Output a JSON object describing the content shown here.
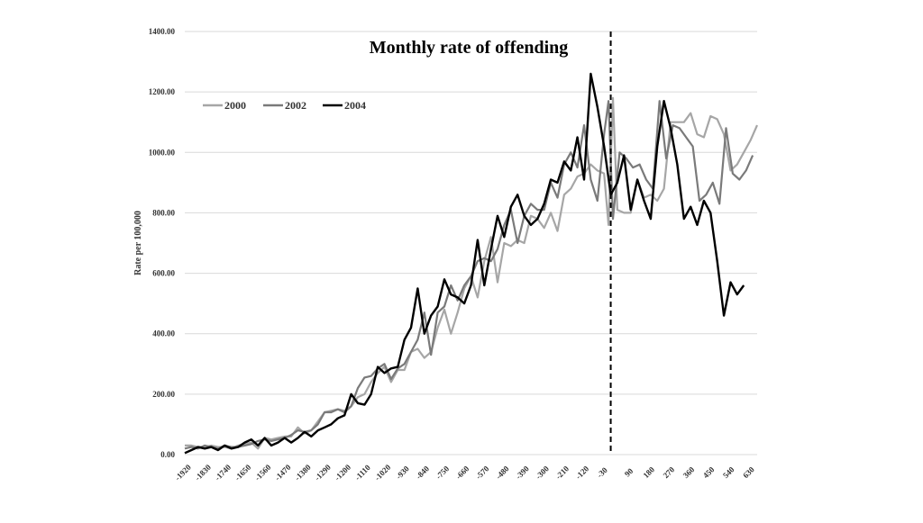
{
  "chart_data": {
    "type": "line",
    "title": "Monthly rate of offending",
    "xlabel": "",
    "ylabel": "Rate per 100,000",
    "ylim": [
      0,
      1400
    ],
    "xlim": [
      -1920,
      660
    ],
    "y_ticks": [
      "0.00",
      "200.00",
      "400.00",
      "600.00",
      "800.00",
      "1000.00",
      "1200.00",
      "1400.00"
    ],
    "x_ticks": [
      "-1920",
      "-1830",
      "-1740",
      "-1650",
      "-1560",
      "-1470",
      "-1380",
      "-1290",
      "-1200",
      "-1110",
      "-1020",
      "-930",
      "-840",
      "-750",
      "-660",
      "-570",
      "-480",
      "-390",
      "-300",
      "-210",
      "-120",
      "-30",
      "90",
      "180",
      "270",
      "360",
      "450",
      "540",
      "630"
    ],
    "grid": "horizontal",
    "legend_position": "top-left",
    "reference_line": {
      "x": 0,
      "style": "dashed"
    },
    "colors": {
      "2000": "#a6a6a6",
      "2002": "#7a7a7a",
      "2004": "#000000"
    },
    "series": [
      {
        "name": "2000",
        "points": [
          [
            -1920,
            30
          ],
          [
            -1890,
            30
          ],
          [
            -1860,
            25
          ],
          [
            -1830,
            25
          ],
          [
            -1800,
            30
          ],
          [
            -1770,
            25
          ],
          [
            -1740,
            25
          ],
          [
            -1710,
            20
          ],
          [
            -1680,
            30
          ],
          [
            -1650,
            35
          ],
          [
            -1620,
            40
          ],
          [
            -1590,
            20
          ],
          [
            -1560,
            55
          ],
          [
            -1530,
            50
          ],
          [
            -1500,
            55
          ],
          [
            -1470,
            60
          ],
          [
            -1440,
            60
          ],
          [
            -1410,
            90
          ],
          [
            -1380,
            70
          ],
          [
            -1350,
            80
          ],
          [
            -1320,
            110
          ],
          [
            -1290,
            140
          ],
          [
            -1260,
            145
          ],
          [
            -1230,
            150
          ],
          [
            -1200,
            145
          ],
          [
            -1170,
            160
          ],
          [
            -1140,
            190
          ],
          [
            -1110,
            200
          ],
          [
            -1080,
            240
          ],
          [
            -1050,
            270
          ],
          [
            -1020,
            290
          ],
          [
            -990,
            240
          ],
          [
            -960,
            280
          ],
          [
            -930,
            280
          ],
          [
            -900,
            340
          ],
          [
            -870,
            350
          ],
          [
            -840,
            320
          ],
          [
            -810,
            340
          ],
          [
            -780,
            420
          ],
          [
            -750,
            480
          ],
          [
            -720,
            400
          ],
          [
            -690,
            470
          ],
          [
            -660,
            550
          ],
          [
            -630,
            590
          ],
          [
            -600,
            520
          ],
          [
            -570,
            640
          ],
          [
            -540,
            720
          ],
          [
            -510,
            570
          ],
          [
            -480,
            700
          ],
          [
            -450,
            690
          ],
          [
            -420,
            710
          ],
          [
            -390,
            700
          ],
          [
            -360,
            790
          ],
          [
            -330,
            780
          ],
          [
            -300,
            750
          ],
          [
            -270,
            800
          ],
          [
            -240,
            740
          ],
          [
            -210,
            860
          ],
          [
            -180,
            880
          ],
          [
            -150,
            920
          ],
          [
            -120,
            930
          ],
          [
            -90,
            960
          ],
          [
            -60,
            940
          ],
          [
            -30,
            930
          ],
          [
            -10,
            760
          ],
          [
            10,
            1180
          ],
          [
            30,
            810
          ],
          [
            60,
            800
          ],
          [
            90,
            800
          ],
          [
            120,
            910
          ],
          [
            150,
            850
          ],
          [
            180,
            860
          ],
          [
            210,
            840
          ],
          [
            240,
            880
          ],
          [
            270,
            1100
          ],
          [
            300,
            1100
          ],
          [
            330,
            1100
          ],
          [
            360,
            1130
          ],
          [
            390,
            1060
          ],
          [
            420,
            1050
          ],
          [
            450,
            1120
          ],
          [
            480,
            1110
          ],
          [
            510,
            1060
          ],
          [
            540,
            940
          ],
          [
            570,
            960
          ],
          [
            600,
            1000
          ],
          [
            630,
            1040
          ],
          [
            660,
            1090
          ]
        ]
      },
      {
        "name": "2002",
        "points": [
          [
            -1920,
            20
          ],
          [
            -1890,
            25
          ],
          [
            -1860,
            20
          ],
          [
            -1830,
            30
          ],
          [
            -1800,
            25
          ],
          [
            -1770,
            20
          ],
          [
            -1740,
            30
          ],
          [
            -1710,
            25
          ],
          [
            -1680,
            25
          ],
          [
            -1650,
            30
          ],
          [
            -1620,
            35
          ],
          [
            -1590,
            45
          ],
          [
            -1560,
            50
          ],
          [
            -1530,
            45
          ],
          [
            -1500,
            50
          ],
          [
            -1470,
            55
          ],
          [
            -1440,
            65
          ],
          [
            -1410,
            80
          ],
          [
            -1380,
            75
          ],
          [
            -1350,
            80
          ],
          [
            -1320,
            100
          ],
          [
            -1290,
            140
          ],
          [
            -1260,
            140
          ],
          [
            -1230,
            150
          ],
          [
            -1200,
            140
          ],
          [
            -1170,
            160
          ],
          [
            -1140,
            220
          ],
          [
            -1110,
            255
          ],
          [
            -1080,
            260
          ],
          [
            -1050,
            285
          ],
          [
            -1020,
            300
          ],
          [
            -990,
            250
          ],
          [
            -960,
            285
          ],
          [
            -930,
            300
          ],
          [
            -900,
            340
          ],
          [
            -870,
            380
          ],
          [
            -840,
            470
          ],
          [
            -810,
            330
          ],
          [
            -780,
            470
          ],
          [
            -750,
            490
          ],
          [
            -720,
            560
          ],
          [
            -690,
            510
          ],
          [
            -660,
            560
          ],
          [
            -630,
            590
          ],
          [
            -600,
            640
          ],
          [
            -570,
            650
          ],
          [
            -540,
            640
          ],
          [
            -510,
            680
          ],
          [
            -480,
            760
          ],
          [
            -450,
            810
          ],
          [
            -420,
            700
          ],
          [
            -390,
            790
          ],
          [
            -360,
            830
          ],
          [
            -330,
            810
          ],
          [
            -300,
            810
          ],
          [
            -270,
            900
          ],
          [
            -240,
            850
          ],
          [
            -210,
            960
          ],
          [
            -180,
            1000
          ],
          [
            -150,
            950
          ],
          [
            -120,
            1090
          ],
          [
            -90,
            910
          ],
          [
            -60,
            840
          ],
          [
            -30,
            1060
          ],
          [
            -10,
            1170
          ],
          [
            10,
            780
          ],
          [
            40,
            1000
          ],
          [
            70,
            980
          ],
          [
            100,
            950
          ],
          [
            130,
            960
          ],
          [
            160,
            910
          ],
          [
            190,
            880
          ],
          [
            220,
            1170
          ],
          [
            250,
            980
          ],
          [
            280,
            1090
          ],
          [
            310,
            1080
          ],
          [
            340,
            1050
          ],
          [
            370,
            1020
          ],
          [
            400,
            840
          ],
          [
            430,
            860
          ],
          [
            460,
            900
          ],
          [
            490,
            830
          ],
          [
            520,
            1080
          ],
          [
            550,
            930
          ],
          [
            580,
            910
          ],
          [
            610,
            940
          ],
          [
            640,
            990
          ]
        ]
      },
      {
        "name": "2004",
        "points": [
          [
            -1920,
            5
          ],
          [
            -1890,
            15
          ],
          [
            -1860,
            25
          ],
          [
            -1830,
            20
          ],
          [
            -1800,
            25
          ],
          [
            -1770,
            15
          ],
          [
            -1740,
            30
          ],
          [
            -1710,
            20
          ],
          [
            -1680,
            25
          ],
          [
            -1650,
            40
          ],
          [
            -1620,
            50
          ],
          [
            -1590,
            30
          ],
          [
            -1560,
            55
          ],
          [
            -1530,
            30
          ],
          [
            -1500,
            40
          ],
          [
            -1470,
            55
          ],
          [
            -1440,
            40
          ],
          [
            -1410,
            55
          ],
          [
            -1380,
            75
          ],
          [
            -1350,
            60
          ],
          [
            -1320,
            80
          ],
          [
            -1290,
            90
          ],
          [
            -1260,
            100
          ],
          [
            -1230,
            120
          ],
          [
            -1200,
            130
          ],
          [
            -1170,
            200
          ],
          [
            -1140,
            170
          ],
          [
            -1110,
            165
          ],
          [
            -1080,
            200
          ],
          [
            -1050,
            290
          ],
          [
            -1020,
            270
          ],
          [
            -990,
            285
          ],
          [
            -960,
            290
          ],
          [
            -930,
            380
          ],
          [
            -900,
            420
          ],
          [
            -870,
            550
          ],
          [
            -840,
            400
          ],
          [
            -810,
            460
          ],
          [
            -780,
            490
          ],
          [
            -750,
            580
          ],
          [
            -720,
            530
          ],
          [
            -690,
            520
          ],
          [
            -660,
            500
          ],
          [
            -630,
            560
          ],
          [
            -600,
            710
          ],
          [
            -570,
            560
          ],
          [
            -540,
            680
          ],
          [
            -510,
            790
          ],
          [
            -480,
            720
          ],
          [
            -450,
            820
          ],
          [
            -420,
            860
          ],
          [
            -390,
            790
          ],
          [
            -360,
            760
          ],
          [
            -330,
            780
          ],
          [
            -300,
            830
          ],
          [
            -270,
            910
          ],
          [
            -240,
            900
          ],
          [
            -210,
            970
          ],
          [
            -180,
            940
          ],
          [
            -150,
            1050
          ],
          [
            -120,
            910
          ],
          [
            -90,
            1260
          ],
          [
            -60,
            1150
          ],
          [
            -30,
            1020
          ],
          [
            0,
            860
          ],
          [
            30,
            900
          ],
          [
            60,
            990
          ],
          [
            90,
            810
          ],
          [
            120,
            910
          ],
          [
            150,
            840
          ],
          [
            180,
            780
          ],
          [
            210,
            1020
          ],
          [
            240,
            1170
          ],
          [
            270,
            1080
          ],
          [
            300,
            960
          ],
          [
            330,
            780
          ],
          [
            360,
            820
          ],
          [
            390,
            760
          ],
          [
            420,
            840
          ],
          [
            450,
            800
          ],
          [
            480,
            640
          ],
          [
            510,
            460
          ],
          [
            540,
            570
          ],
          [
            570,
            530
          ],
          [
            600,
            560
          ]
        ]
      }
    ]
  }
}
